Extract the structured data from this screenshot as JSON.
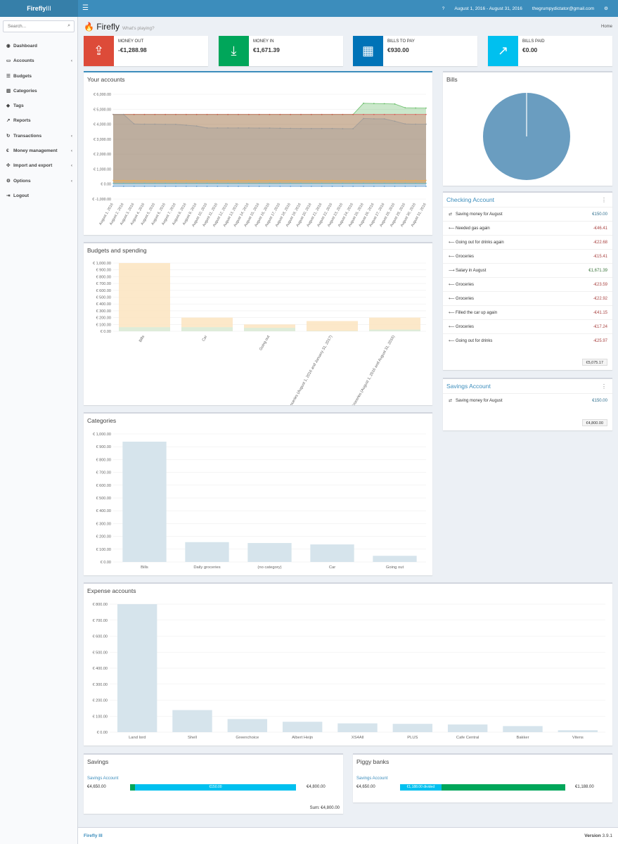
{
  "app": {
    "logo_bold": "Firefly",
    "logo_light": "III",
    "date_range": "August 1, 2016 - August 31, 2016",
    "user_email": "thegrumpydictator@gmail.com"
  },
  "sidebar": {
    "search_placeholder": "Search...",
    "items": [
      {
        "label": "Dashboard",
        "icon": "dashboard-icon",
        "has_children": false
      },
      {
        "label": "Accounts",
        "icon": "credit-card-icon",
        "has_children": true
      },
      {
        "label": "Budgets",
        "icon": "tasks-icon",
        "has_children": false
      },
      {
        "label": "Categories",
        "icon": "bar-chart-icon",
        "has_children": false
      },
      {
        "label": "Tags",
        "icon": "tags-icon",
        "has_children": false
      },
      {
        "label": "Reports",
        "icon": "line-chart-icon",
        "has_children": false
      },
      {
        "label": "Transactions",
        "icon": "repeat-icon",
        "has_children": true
      },
      {
        "label": "Money management",
        "icon": "euro-icon",
        "has_children": true
      },
      {
        "label": "Import and export",
        "icon": "arrows-icon",
        "has_children": true
      },
      {
        "label": "Options",
        "icon": "gears-icon",
        "has_children": true
      },
      {
        "label": "Logout",
        "icon": "sign-out-icon",
        "has_children": false
      }
    ]
  },
  "page": {
    "title": "Firefly",
    "subtitle": "What's playing?",
    "breadcrumb": "Home"
  },
  "info_boxes": [
    {
      "title": "Money out",
      "value": "-€1,288.98",
      "color": "#dd4b39",
      "icon": "upload-icon"
    },
    {
      "title": "Money in",
      "value": "€1,671.39",
      "color": "#00a65a",
      "icon": "download-icon"
    },
    {
      "title": "Bills to pay",
      "value": "€930.00",
      "color": "#0073b7",
      "icon": "calendar-icon"
    },
    {
      "title": "Bills paid",
      "value": "€0.00",
      "color": "#00c0ef",
      "icon": "line-chart-icon"
    }
  ],
  "accounts_chart": {
    "title": "Your accounts",
    "type": "area",
    "y_ticks": [
      "€ 6,000.00",
      "€ 5,000.00",
      "€ 4,000.00",
      "€ 3,000.00",
      "€ 2,000.00",
      "€ 1,000.00",
      "€ 0.00",
      "€ -1,000.00"
    ],
    "ylim": [
      -1000,
      6000
    ],
    "x": [
      "August 1, 2016",
      "August 2, 2016",
      "August 3, 2016",
      "August 4, 2016",
      "August 5, 2016",
      "August 6, 2016",
      "August 7, 2016",
      "August 8, 2016",
      "August 9, 2016",
      "August 10, 2016",
      "August 11, 2016",
      "August 12, 2016",
      "August 13, 2016",
      "August 14, 2016",
      "August 15, 2016",
      "August 16, 2016",
      "August 17, 2016",
      "August 18, 2016",
      "August 19, 2016",
      "August 20, 2016",
      "August 21, 2016",
      "August 22, 2016",
      "August 23, 2016",
      "August 24, 2016",
      "August 25, 2016",
      "August 26, 2016",
      "August 27, 2016",
      "August 28, 2016",
      "August 29, 2016",
      "August 30, 2016",
      "August 31, 2016"
    ],
    "series": [
      {
        "color": "#999999",
        "values": [
          4650,
          4650,
          4020,
          4000,
          4000,
          3990,
          3990,
          3930,
          3880,
          3750,
          3750,
          3750,
          3750,
          3750,
          3740,
          3740,
          3730,
          3720,
          3710,
          3710,
          3710,
          3710,
          3700,
          3700,
          4380,
          4360,
          4360,
          4200,
          4020,
          4000,
          4000
        ]
      },
      {
        "color": "#d9534f",
        "values": [
          4650,
          4650,
          4650,
          4650,
          4650,
          4650,
          4650,
          4650,
          4650,
          4650,
          4650,
          4650,
          4650,
          4650,
          4650,
          4650,
          4650,
          4650,
          4650,
          4650,
          4650,
          4650,
          4650,
          4650,
          4650,
          4650,
          4650,
          4650,
          4650,
          4650,
          4650
        ]
      },
      {
        "color": "#5cb85c",
        "values": [
          4650,
          4650,
          4650,
          4650,
          4650,
          4650,
          4650,
          4650,
          4650,
          4650,
          4650,
          4650,
          4650,
          4650,
          4650,
          4650,
          4650,
          4650,
          4650,
          4650,
          4650,
          4650,
          4650,
          4650,
          5400,
          5380,
          5370,
          5350,
          5100,
          5080,
          5075
        ]
      },
      {
        "color": "#f0ad4e",
        "values": [
          250,
          250,
          250,
          250,
          250,
          250,
          250,
          250,
          250,
          250,
          250,
          250,
          250,
          250,
          250,
          250,
          250,
          250,
          250,
          250,
          250,
          250,
          250,
          250,
          250,
          250,
          250,
          250,
          250,
          250,
          250
        ]
      },
      {
        "color": "#5bc0de",
        "values": [
          50,
          50,
          50,
          50,
          50,
          50,
          50,
          50,
          50,
          50,
          50,
          50,
          50,
          50,
          50,
          50,
          50,
          50,
          50,
          50,
          50,
          50,
          50,
          50,
          50,
          50,
          50,
          50,
          50,
          50,
          50
        ]
      },
      {
        "color": "#428bca",
        "values": [
          -150,
          -150,
          -150,
          -150,
          -150,
          -150,
          -150,
          -150,
          -150,
          -150,
          -150,
          -150,
          -150,
          -150,
          -150,
          -150,
          -150,
          -150,
          -150,
          -150,
          -150,
          -150,
          -150,
          -150,
          -150,
          -150,
          -150,
          -150,
          -150,
          -150,
          -150
        ]
      }
    ]
  },
  "bills_chart": {
    "title": "Bills",
    "type": "pie",
    "slices": [
      {
        "value": 930,
        "color": "#6a9dc0"
      },
      {
        "value": 0,
        "color": "#ffffff"
      }
    ]
  },
  "checking": {
    "title": "Checking Account",
    "transactions": [
      {
        "kind": "transfer",
        "description": "Saving money for August",
        "amount": "€150.00"
      },
      {
        "kind": "withdrawal",
        "description": "Needed gas again",
        "amount": "-€46.41"
      },
      {
        "kind": "withdrawal",
        "description": "Going out for drinks again",
        "amount": "-€22.68"
      },
      {
        "kind": "withdrawal",
        "description": "Groceries",
        "amount": "-€15.41"
      },
      {
        "kind": "deposit",
        "description": "Salary in August",
        "amount": "€1,671.39"
      },
      {
        "kind": "withdrawal",
        "description": "Groceries",
        "amount": "-€23.59"
      },
      {
        "kind": "withdrawal",
        "description": "Groceries",
        "amount": "-€22.92"
      },
      {
        "kind": "withdrawal",
        "description": "Filled the car up again",
        "amount": "-€41.15"
      },
      {
        "kind": "withdrawal",
        "description": "Groceries",
        "amount": "-€17.24"
      },
      {
        "kind": "withdrawal",
        "description": "Going out for drinks",
        "amount": "-€25.97"
      }
    ],
    "balance": "€5,075.17"
  },
  "savings_account": {
    "title": "Savings Account",
    "transactions": [
      {
        "kind": "transfer",
        "description": "Saving money for August",
        "amount": "€150.00"
      }
    ],
    "balance": "€4,800.00"
  },
  "budgets_chart": {
    "title": "Budgets and spending",
    "type": "bar",
    "y_ticks": [
      "€ 1,000.00",
      "€ 900.00",
      "€ 800.00",
      "€ 700.00",
      "€ 600.00",
      "€ 500.00",
      "€ 400.00",
      "€ 300.00",
      "€ 200.00",
      "€ 100.00",
      "€ 0.00"
    ],
    "ylim": [
      0,
      1000
    ],
    "categories": [
      "Bills",
      "Car",
      "Going out",
      "Groceries (August 1, 2016 and January 31, 2017)",
      "Groceries (August 1, 2016 and August 31, 2016)"
    ],
    "series": [
      {
        "color": "#fce4c0",
        "values": [
          1000,
          200,
          100,
          150,
          200
        ]
      },
      {
        "color": "#d8ecdc",
        "values": [
          60,
          60,
          50,
          5,
          25
        ]
      }
    ]
  },
  "categories_chart": {
    "title": "Categories",
    "type": "bar",
    "y_ticks": [
      "€ 1,000.00",
      "€ 900.00",
      "€ 800.00",
      "€ 700.00",
      "€ 600.00",
      "€ 500.00",
      "€ 400.00",
      "€ 300.00",
      "€ 200.00",
      "€ 100.00",
      "€ 0.00"
    ],
    "ylim": [
      0,
      1000
    ],
    "categories": [
      "Bills",
      "Daily groceries",
      "(no category)",
      "Car",
      "Going out"
    ],
    "values": [
      940,
      155,
      148,
      137,
      48
    ],
    "color": "#d6e4ec"
  },
  "expense_chart": {
    "title": "Expense accounts",
    "type": "bar",
    "y_ticks": [
      "€ 800.00",
      "€ 700.00",
      "€ 600.00",
      "€ 500.00",
      "€ 400.00",
      "€ 300.00",
      "€ 200.00",
      "€ 100.00",
      "€ 0.00"
    ],
    "ylim": [
      0,
      800
    ],
    "categories": [
      "Land lord",
      "Shell",
      "Greenchoice",
      "Albert Heijn",
      "XS4All",
      "PLUS",
      "Cafe Central",
      "Bakker",
      "Vitens"
    ],
    "values": [
      800,
      138,
      82,
      65,
      55,
      52,
      48,
      38,
      12
    ],
    "color": "#d6e4ec"
  },
  "savings_box": {
    "title": "Savings",
    "account": "Savings Account",
    "left": "€4,650.00",
    "bar_label": "€150.00",
    "right": "€4,800.00",
    "fraction_green": 0.03,
    "fraction_blue": 0.97,
    "sum": "Sum: €4,800.00"
  },
  "piggy_box": {
    "title": "Piggy banks",
    "account": "Savings Account",
    "left": "€4,650.00",
    "bar_label": "€1,188.00 divided",
    "right": "€1,188.00",
    "fraction_blue": 0.25,
    "fraction_green": 0.75
  },
  "footer": {
    "brand": "Firefly III",
    "version_label": "Version",
    "version": "3.9.1"
  }
}
